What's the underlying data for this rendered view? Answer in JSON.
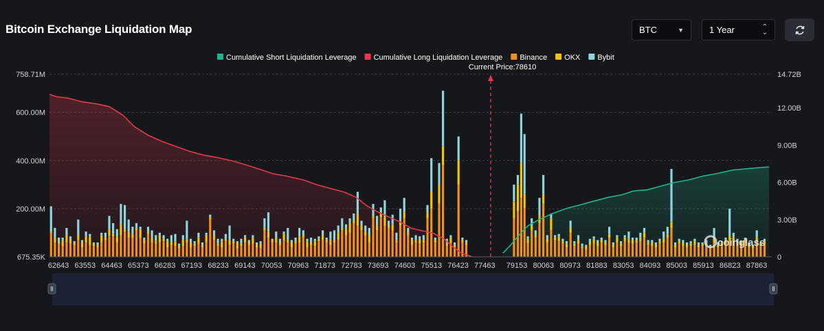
{
  "page": {
    "title": "Bitcoin Exchange Liquidation Map",
    "coin_select": "BTC",
    "range_select": "1 Year",
    "icons": {
      "coin_caret": "chevron-down-icon",
      "range_caret": "updown-icon",
      "refresh": "refresh-icon"
    }
  },
  "chart_data": {
    "type": "bar",
    "title": "",
    "legend_placement": "top-center",
    "grid": true,
    "colors": {
      "short": "#1fb58f",
      "long": "#e5384b",
      "binance": "#f28e1c",
      "okx": "#f5c400",
      "bybit": "#8ed4dc",
      "current": "#e5384b"
    },
    "legend": [
      {
        "name": "Cumulative Short Liquidation Leverage",
        "color": "#1fb58f"
      },
      {
        "name": "Cumulative Long Liquidation Leverage",
        "color": "#e5384b"
      },
      {
        "name": "Binance",
        "color": "#f28e1c"
      },
      {
        "name": "OKX",
        "color": "#f5c400"
      },
      {
        "name": "Bybit",
        "color": "#8ed4dc"
      }
    ],
    "current_price_label": "Current Price:78610",
    "current_price": 78610,
    "x_ticks": [
      "62643",
      "63553",
      "64463",
      "65373",
      "66283",
      "67193",
      "68233",
      "69143",
      "70053",
      "70963",
      "71873",
      "72783",
      "73693",
      "74603",
      "75513",
      "76423",
      "77463",
      "79153",
      "80063",
      "80973",
      "81883",
      "83053",
      "84093",
      "85003",
      "85913",
      "86823",
      "87863"
    ],
    "x_range": [
      62643,
      88700
    ],
    "y_left_ticks": [
      "758.71M",
      "600.00M",
      "400.00M",
      "200.00M",
      "675.35K"
    ],
    "y_left_values": [
      758.71,
      600,
      400,
      200,
      0.675
    ],
    "y_right_ticks": [
      "14.72B",
      "12.00B",
      "9.00B",
      "6.00B",
      "3.00B",
      "0"
    ],
    "y_right_values": [
      14.72,
      12,
      9,
      6,
      3,
      0
    ],
    "y_left_unit": "M",
    "y_right_unit": "B",
    "bars": [
      [
        62700,
        100,
        5,
        105
      ],
      [
        62840,
        60,
        20,
        40
      ],
      [
        62980,
        55,
        5,
        20
      ],
      [
        63120,
        45,
        25,
        10
      ],
      [
        63260,
        60,
        30,
        30
      ],
      [
        63400,
        55,
        20,
        10
      ],
      [
        63540,
        50,
        10,
        5
      ],
      [
        63680,
        70,
        20,
        65
      ],
      [
        63820,
        40,
        20,
        10
      ],
      [
        63960,
        60,
        25,
        20
      ],
      [
        64100,
        50,
        35,
        10
      ],
      [
        64240,
        45,
        10,
        5
      ],
      [
        64380,
        40,
        10,
        10
      ],
      [
        64520,
        60,
        30,
        10
      ],
      [
        64660,
        70,
        10,
        20
      ],
      [
        64800,
        90,
        25,
        55
      ],
      [
        64940,
        85,
        10,
        45
      ],
      [
        65080,
        60,
        25,
        30
      ],
      [
        65220,
        90,
        45,
        85
      ],
      [
        65360,
        105,
        10,
        100
      ],
      [
        65500,
        80,
        25,
        50
      ],
      [
        65640,
        80,
        15,
        30
      ],
      [
        65780,
        110,
        10,
        20
      ],
      [
        65920,
        80,
        35,
        10
      ],
      [
        66060,
        55,
        15,
        10
      ],
      [
        66200,
        95,
        10,
        20
      ],
      [
        66340,
        60,
        20,
        30
      ],
      [
        66480,
        55,
        10,
        25
      ],
      [
        66620,
        60,
        30,
        10
      ],
      [
        66760,
        65,
        10,
        15
      ],
      [
        66900,
        40,
        25,
        10
      ],
      [
        67040,
        50,
        10,
        30
      ],
      [
        67180,
        45,
        20,
        30
      ],
      [
        67320,
        35,
        10,
        10
      ],
      [
        67460,
        45,
        25,
        20
      ],
      [
        67600,
        60,
        15,
        75
      ],
      [
        67740,
        40,
        20,
        15
      ],
      [
        67880,
        45,
        10,
        10
      ],
      [
        68020,
        55,
        25,
        20
      ],
      [
        68160,
        40,
        10,
        10
      ],
      [
        68300,
        60,
        30,
        10
      ],
      [
        68440,
        155,
        10,
        10
      ],
      [
        68580,
        70,
        20,
        20
      ],
      [
        68720,
        45,
        10,
        20
      ],
      [
        68860,
        40,
        25,
        10
      ],
      [
        69000,
        65,
        10,
        20
      ],
      [
        69140,
        50,
        20,
        60
      ],
      [
        69280,
        55,
        10,
        10
      ],
      [
        69420,
        35,
        25,
        5
      ],
      [
        69560,
        45,
        10,
        20
      ],
      [
        69700,
        60,
        20,
        10
      ],
      [
        69840,
        50,
        10,
        10
      ],
      [
        69980,
        55,
        25,
        10
      ],
      [
        70120,
        40,
        10,
        10
      ],
      [
        70260,
        35,
        20,
        10
      ],
      [
        70400,
        110,
        10,
        40
      ],
      [
        70540,
        80,
        25,
        80
      ],
      [
        70680,
        60,
        10,
        5
      ],
      [
        70820,
        60,
        20,
        25
      ],
      [
        70960,
        50,
        10,
        15
      ],
      [
        71100,
        70,
        25,
        10
      ],
      [
        71240,
        60,
        10,
        50
      ],
      [
        71380,
        40,
        20,
        10
      ],
      [
        71520,
        55,
        10,
        15
      ],
      [
        71660,
        60,
        25,
        35
      ],
      [
        71800,
        80,
        10,
        20
      ],
      [
        71940,
        40,
        25,
        10
      ],
      [
        72080,
        50,
        10,
        20
      ],
      [
        72220,
        45,
        20,
        10
      ],
      [
        72360,
        65,
        10,
        10
      ],
      [
        72500,
        70,
        20,
        20
      ],
      [
        72640,
        60,
        10,
        10
      ],
      [
        72780,
        50,
        25,
        30
      ],
      [
        72920,
        60,
        10,
        40
      ],
      [
        73060,
        70,
        30,
        30
      ],
      [
        73200,
        110,
        10,
        40
      ],
      [
        73340,
        90,
        25,
        20
      ],
      [
        73480,
        100,
        40,
        20
      ],
      [
        73620,
        140,
        10,
        30
      ],
      [
        73760,
        130,
        50,
        90
      ],
      [
        73900,
        110,
        20,
        20
      ],
      [
        74040,
        90,
        15,
        25
      ],
      [
        74180,
        60,
        30,
        30
      ],
      [
        74320,
        160,
        10,
        50
      ],
      [
        74460,
        110,
        20,
        40
      ],
      [
        74600,
        165,
        20,
        20
      ],
      [
        74740,
        130,
        35,
        70
      ],
      [
        74880,
        120,
        10,
        20
      ],
      [
        75020,
        110,
        25,
        40
      ],
      [
        75160,
        60,
        10,
        30
      ],
      [
        75300,
        130,
        20,
        50
      ],
      [
        75440,
        160,
        25,
        60
      ],
      [
        75580,
        90,
        10,
        20
      ],
      [
        75720,
        50,
        20,
        10
      ],
      [
        75860,
        60,
        10,
        20
      ],
      [
        76000,
        55,
        20,
        10
      ],
      [
        76140,
        60,
        10,
        20
      ],
      [
        76280,
        160,
        25,
        30
      ],
      [
        76420,
        200,
        70,
        140
      ],
      [
        76560,
        60,
        10,
        10
      ],
      [
        76700,
        220,
        80,
        90
      ],
      [
        76840,
        380,
        80,
        230
      ],
      [
        76980,
        45,
        10,
        20
      ],
      [
        77120,
        60,
        20,
        10
      ],
      [
        77260,
        40,
        10,
        10
      ],
      [
        77400,
        300,
        100,
        100
      ],
      [
        77540,
        60,
        10,
        10
      ],
      [
        77680,
        50,
        10,
        10
      ],
      [
        79400,
        160,
        70,
        70
      ],
      [
        79540,
        190,
        110,
        40
      ],
      [
        79660,
        245,
        145,
        205
      ],
      [
        79780,
        200,
        60,
        250
      ],
      [
        79900,
        55,
        20,
        10
      ],
      [
        80040,
        110,
        20,
        30
      ],
      [
        80180,
        80,
        10,
        20
      ],
      [
        80320,
        140,
        30,
        75
      ],
      [
        80460,
        220,
        40,
        80
      ],
      [
        80600,
        60,
        15,
        15
      ],
      [
        80740,
        110,
        50,
        20
      ],
      [
        80880,
        70,
        10,
        10
      ],
      [
        81020,
        65,
        20,
        10
      ],
      [
        81160,
        55,
        10,
        10
      ],
      [
        81300,
        40,
        15,
        10
      ],
      [
        81440,
        100,
        20,
        30
      ],
      [
        81580,
        45,
        10,
        10
      ],
      [
        81720,
        55,
        15,
        20
      ],
      [
        81860,
        35,
        10,
        10
      ],
      [
        82000,
        30,
        10,
        10
      ],
      [
        82140,
        50,
        10,
        15
      ],
      [
        82280,
        55,
        20,
        10
      ],
      [
        82420,
        45,
        15,
        10
      ],
      [
        82560,
        60,
        10,
        10
      ],
      [
        82700,
        50,
        10,
        10
      ],
      [
        82840,
        80,
        15,
        30
      ],
      [
        82980,
        40,
        10,
        10
      ],
      [
        83120,
        60,
        20,
        10
      ],
      [
        83260,
        45,
        10,
        10
      ],
      [
        83400,
        65,
        15,
        10
      ],
      [
        83540,
        60,
        15,
        30
      ],
      [
        83680,
        55,
        15,
        10
      ],
      [
        83820,
        60,
        10,
        10
      ],
      [
        83960,
        65,
        15,
        20
      ],
      [
        84100,
        80,
        20,
        20
      ],
      [
        84240,
        50,
        10,
        10
      ],
      [
        84380,
        45,
        15,
        10
      ],
      [
        84520,
        40,
        10,
        10
      ],
      [
        84660,
        55,
        10,
        10
      ],
      [
        84800,
        60,
        15,
        30
      ],
      [
        84940,
        80,
        15,
        30
      ],
      [
        85080,
        120,
        25,
        220
      ],
      [
        85220,
        40,
        10,
        10
      ],
      [
        85360,
        55,
        10,
        10
      ],
      [
        85500,
        45,
        15,
        10
      ],
      [
        85640,
        40,
        10,
        10
      ],
      [
        85780,
        45,
        10,
        10
      ],
      [
        85920,
        50,
        15,
        10
      ],
      [
        86060,
        40,
        10,
        10
      ],
      [
        86200,
        45,
        10,
        5
      ],
      [
        86340,
        50,
        10,
        10
      ],
      [
        86480,
        35,
        10,
        5
      ],
      [
        86620,
        60,
        20,
        40
      ],
      [
        86760,
        40,
        10,
        10
      ],
      [
        86900,
        50,
        10,
        5
      ],
      [
        87040,
        55,
        15,
        10
      ],
      [
        87180,
        70,
        20,
        110
      ],
      [
        87320,
        60,
        20,
        20
      ],
      [
        87460,
        55,
        10,
        10
      ],
      [
        87600,
        45,
        15,
        5
      ],
      [
        87740,
        60,
        10,
        10
      ],
      [
        87880,
        40,
        10,
        10
      ],
      [
        88020,
        35,
        10,
        5
      ],
      [
        88160,
        65,
        15,
        30
      ],
      [
        88300,
        45,
        10,
        5
      ],
      [
        88440,
        55,
        10,
        10
      ]
    ],
    "long_cumulative": [
      [
        62643,
        13.1
      ],
      [
        62900,
        12.9
      ],
      [
        63300,
        12.8
      ],
      [
        63800,
        12.5
      ],
      [
        64400,
        12.3
      ],
      [
        64800,
        12.1
      ],
      [
        65300,
        11.4
      ],
      [
        65700,
        10.5
      ],
      [
        66200,
        9.8
      ],
      [
        66700,
        9.3
      ],
      [
        67200,
        8.9
      ],
      [
        67700,
        8.5
      ],
      [
        68200,
        8.2
      ],
      [
        68700,
        8.0
      ],
      [
        69300,
        7.7
      ],
      [
        69900,
        7.3
      ],
      [
        70300,
        7.0
      ],
      [
        70700,
        6.7
      ],
      [
        71200,
        6.5
      ],
      [
        71800,
        6.2
      ],
      [
        72300,
        5.8
      ],
      [
        72800,
        5.5
      ],
      [
        73300,
        5.2
      ],
      [
        73700,
        4.8
      ],
      [
        74100,
        4.1
      ],
      [
        74500,
        3.6
      ],
      [
        74900,
        3.2
      ],
      [
        75300,
        2.8
      ],
      [
        75700,
        2.3
      ],
      [
        76100,
        2.1
      ],
      [
        76500,
        1.9
      ],
      [
        76900,
        1.4
      ],
      [
        77200,
        0.8
      ],
      [
        77500,
        0.3
      ],
      [
        77900,
        0.0
      ]
    ],
    "short_cumulative": [
      [
        79000,
        0.3
      ],
      [
        79300,
        1.0
      ],
      [
        79600,
        1.8
      ],
      [
        79900,
        2.5
      ],
      [
        80300,
        3.0
      ],
      [
        80800,
        3.5
      ],
      [
        81300,
        3.9
      ],
      [
        81800,
        4.2
      ],
      [
        82300,
        4.5
      ],
      [
        82800,
        4.8
      ],
      [
        83300,
        5.0
      ],
      [
        83700,
        5.3
      ],
      [
        84200,
        5.4
      ],
      [
        84700,
        5.7
      ],
      [
        85200,
        6.0
      ],
      [
        85700,
        6.2
      ],
      [
        86200,
        6.5
      ],
      [
        86700,
        6.7
      ],
      [
        87300,
        7.0
      ],
      [
        87800,
        7.1
      ],
      [
        88300,
        7.2
      ],
      [
        88600,
        7.25
      ]
    ]
  }
}
